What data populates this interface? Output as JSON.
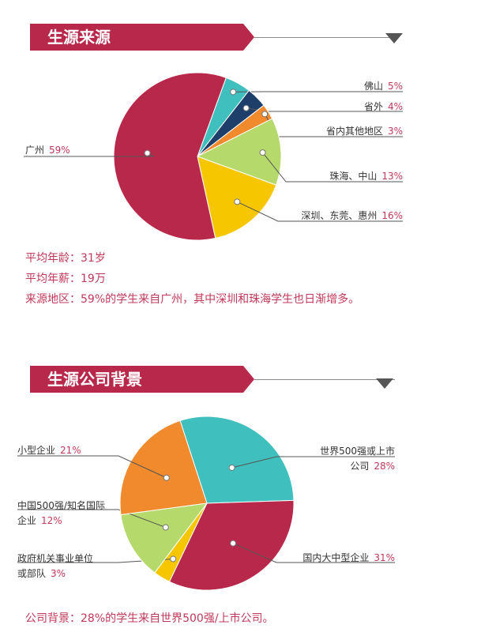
{
  "sections": [
    {
      "banner": "生源来源",
      "notes": [
        "平均年龄：31岁",
        "平均年薪：19万",
        "来源地区：59%的学生来自广州，其中深圳和珠海学生也日渐增多。"
      ]
    },
    {
      "banner": "生源公司背景",
      "notes": [
        "公司背景：28%的学生来自世界500强/上市公司。"
      ]
    }
  ],
  "chart_data": [
    {
      "type": "pie",
      "slices": [
        {
          "label": "佛山",
          "value": 5,
          "display": "5%",
          "color": "#3fbfbe"
        },
        {
          "label": "省外",
          "value": 4,
          "display": "4%",
          "color": "#1f3f6b"
        },
        {
          "label": "省内其他地区",
          "value": 3,
          "display": "3%",
          "color": "#f08a2c"
        },
        {
          "label": "珠海、中山",
          "value": 13,
          "display": "13%",
          "color": "#b5d96b"
        },
        {
          "label": "深圳、东莞、惠州",
          "value": 16,
          "display": "16%",
          "color": "#f6c600"
        },
        {
          "label": "广州",
          "value": 59,
          "display": "59%",
          "color": "#b8284a"
        }
      ]
    },
    {
      "type": "pie",
      "slices": [
        {
          "label": "世界500强或上市公司",
          "label_lines": [
            "世界500强或上市",
            "公司"
          ],
          "value": 28,
          "display": "28%",
          "color": "#3fbfbe"
        },
        {
          "label": "国内大中型企业",
          "label_lines": [
            "国内大中型企业"
          ],
          "value": 31,
          "display": "31%",
          "color": "#b8284a"
        },
        {
          "label": "政府机关事业单位或部队",
          "label_lines": [
            "政府机关事业单位",
            "或部队"
          ],
          "value": 3,
          "display": "3%",
          "color": "#f6c600"
        },
        {
          "label": "中国500强/知名国际企业",
          "label_lines": [
            "中国500强/知名国际",
            "企业"
          ],
          "value": 12,
          "display": "12%",
          "color": "#b5d96b"
        },
        {
          "label": "小型企业",
          "label_lines": [
            "小型企业"
          ],
          "value": 21,
          "display": "21%",
          "color": "#f08a2c"
        }
      ]
    }
  ]
}
